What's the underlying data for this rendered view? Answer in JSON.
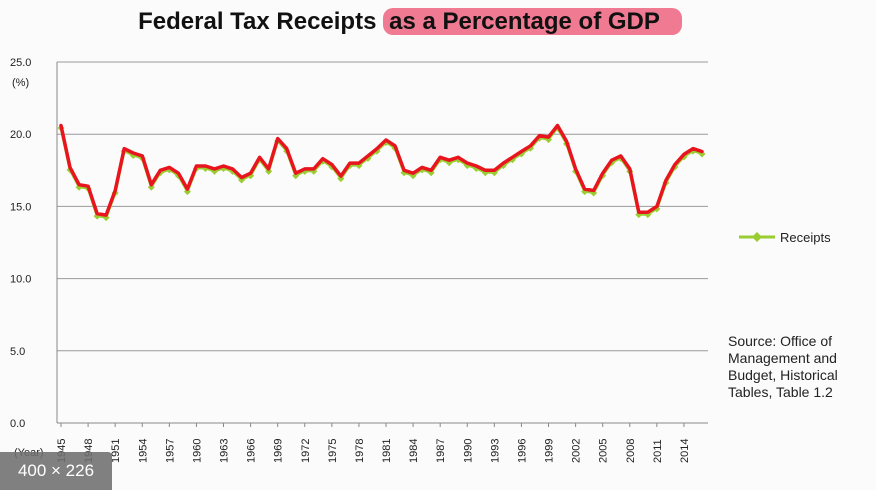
{
  "chart_data": {
    "type": "line",
    "title_part1": "Federal Tax Receipts ",
    "title_part2": "as a Percentage of GDP",
    "ylabel": "(%)",
    "xlabel": "(Year)",
    "ylim": [
      0,
      25
    ],
    "yticks": [
      "0.0",
      "5.0",
      "10.0",
      "15.0",
      "20.0",
      "25.0"
    ],
    "xticks": [
      "1945",
      "1948",
      "1951",
      "1954",
      "1957",
      "1960",
      "1963",
      "1966",
      "1969",
      "1972",
      "1975",
      "1978",
      "1981",
      "1984",
      "1987",
      "1990",
      "1993",
      "1996",
      "1999",
      "2002",
      "2005",
      "2008",
      "2011",
      "2014"
    ],
    "grid": true,
    "legend_position": "right",
    "colors": {
      "line": "#e8141e",
      "marker": "#9acd32"
    },
    "x": [
      1945,
      1946,
      1947,
      1948,
      1949,
      1950,
      1951,
      1952,
      1953,
      1954,
      1955,
      1956,
      1957,
      1958,
      1959,
      1960,
      1961,
      1962,
      1963,
      1964,
      1965,
      1966,
      1967,
      1968,
      1969,
      1970,
      1971,
      1972,
      1973,
      1974,
      1975,
      1976,
      1977,
      1978,
      1979,
      1980,
      1981,
      1982,
      1983,
      1984,
      1985,
      1986,
      1987,
      1988,
      1989,
      1990,
      1991,
      1992,
      1993,
      1994,
      1995,
      1996,
      1997,
      1998,
      1999,
      2000,
      2001,
      2002,
      2003,
      2004,
      2005,
      2006,
      2007,
      2008,
      2009,
      2010,
      2011,
      2012,
      2013,
      2014,
      2015,
      2016
    ],
    "series": [
      {
        "name": "Receipts",
        "values": [
          20.6,
          17.7,
          16.5,
          16.4,
          14.5,
          14.4,
          16.1,
          19.0,
          18.7,
          18.5,
          16.5,
          17.5,
          17.7,
          17.3,
          16.2,
          17.8,
          17.8,
          17.6,
          17.8,
          17.6,
          17.0,
          17.3,
          18.4,
          17.6,
          19.7,
          19.0,
          17.3,
          17.6,
          17.6,
          18.3,
          17.9,
          17.1,
          18.0,
          18.0,
          18.5,
          19.0,
          19.6,
          19.2,
          17.5,
          17.3,
          17.7,
          17.5,
          18.4,
          18.2,
          18.4,
          18.0,
          17.8,
          17.5,
          17.5,
          18.0,
          18.4,
          18.8,
          19.2,
          19.9,
          19.8,
          20.6,
          19.5,
          17.6,
          16.2,
          16.1,
          17.3,
          18.2,
          18.5,
          17.6,
          14.6,
          14.6,
          15.0,
          16.8,
          17.9,
          18.6,
          19.0,
          18.8
        ]
      }
    ]
  },
  "legend": {
    "label": "Receipts"
  },
  "source": "Source: Office of Management and Budget, Historical Tables, Table 1.2",
  "overlay": {
    "size_badge": "400 × 226"
  }
}
